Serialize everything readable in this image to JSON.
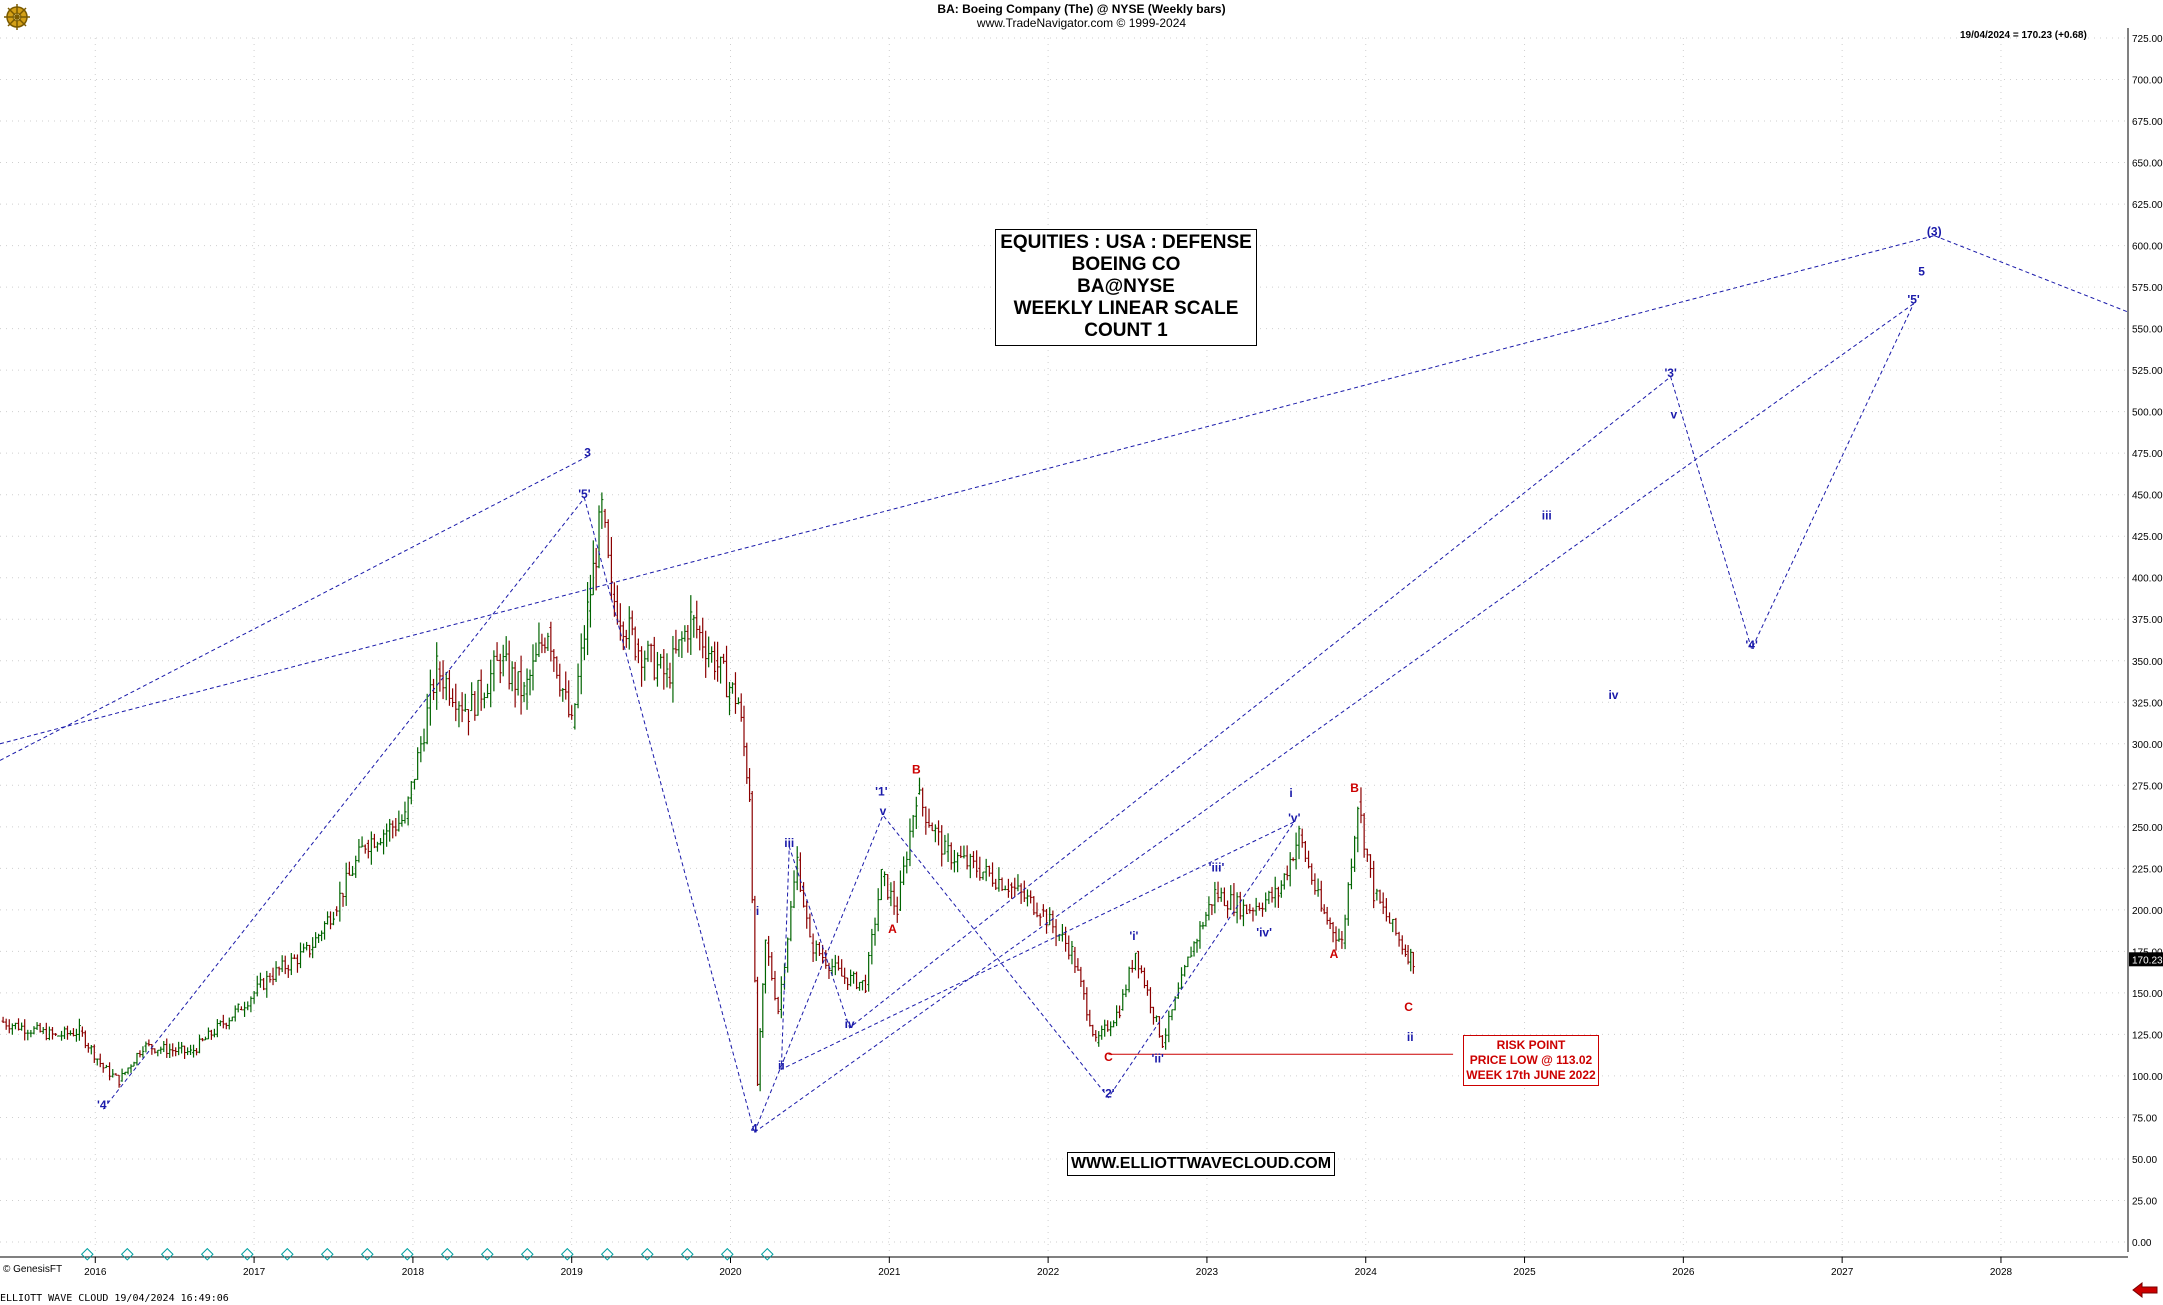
{
  "header": {
    "title": "BA:  Boeing Company (The) @ NYSE  (Weekly bars)",
    "copyright": "www.TradeNavigator.com © 1999-2024"
  },
  "last_quote": "19/04/2024 = 170.23 (+0.68)",
  "label_box": [
    "EQUITIES : USA : DEFENSE",
    "BOEING CO",
    "BA@NYSE",
    "WEEKLY LINEAR SCALE",
    "COUNT 1"
  ],
  "risk_box": [
    "RISK POINT",
    "PRICE LOW @ 113.02",
    "WEEK 17th JUNE 2022"
  ],
  "website": "WWW.ELLIOTTWAVECLOUD.COM",
  "credit": "© GenesisFT",
  "footer": "ELLIOTT WAVE CLOUD   19/04/2024 16:49:06",
  "icon": "ship-wheel-logo-icon",
  "colors": {
    "bull_bar": "#006400",
    "bear_bar": "#8b0000",
    "wave_blue": "#1a1aaa",
    "wave_red": "#cc0000",
    "grid": "#cfcfcf"
  },
  "chart_data": {
    "type": "ohlc-weekly",
    "ylim": [
      0,
      725
    ],
    "y_ticks": [
      0,
      25,
      50,
      75,
      100,
      125,
      150,
      175,
      200,
      225,
      250,
      275,
      300,
      325,
      350,
      375,
      400,
      425,
      450,
      475,
      500,
      525,
      550,
      575,
      600,
      625,
      650,
      675,
      700,
      725
    ],
    "x_range": [
      2015.4,
      2028.8
    ],
    "x_ticks": [
      "2016",
      "2017",
      "2018",
      "2019",
      "2020",
      "2021",
      "2022",
      "2023",
      "2024",
      "2025",
      "2026",
      "2027",
      "2028"
    ],
    "last_price": "170.23",
    "price_path": [
      [
        2015.4,
        133
      ],
      [
        2015.75,
        124
      ],
      [
        2015.9,
        127
      ],
      [
        2016.05,
        105
      ],
      [
        2016.15,
        97
      ],
      [
        2016.3,
        118
      ],
      [
        2016.6,
        114
      ],
      [
        2016.9,
        140
      ],
      [
        2017.1,
        160
      ],
      [
        2017.35,
        176
      ],
      [
        2017.5,
        200
      ],
      [
        2017.7,
        240
      ],
      [
        2017.95,
        255
      ],
      [
        2018.05,
        300
      ],
      [
        2018.15,
        345
      ],
      [
        2018.35,
        320
      ],
      [
        2018.55,
        350
      ],
      [
        2018.7,
        330
      ],
      [
        2018.85,
        370
      ],
      [
        2019.0,
        310
      ],
      [
        2019.1,
        380
      ],
      [
        2019.19,
        440
      ],
      [
        2019.25,
        390
      ],
      [
        2019.4,
        360
      ],
      [
        2019.6,
        340
      ],
      [
        2019.75,
        375
      ],
      [
        2019.9,
        350
      ],
      [
        2020.05,
        325
      ],
      [
        2020.12,
        270
      ],
      [
        2020.17,
        95
      ],
      [
        2020.22,
        180
      ],
      [
        2020.3,
        140
      ],
      [
        2020.42,
        230
      ],
      [
        2020.5,
        180
      ],
      [
        2020.7,
        160
      ],
      [
        2020.85,
        155
      ],
      [
        2020.95,
        220
      ],
      [
        2021.05,
        200
      ],
      [
        2021.17,
        270
      ],
      [
        2021.35,
        235
      ],
      [
        2021.55,
        225
      ],
      [
        2021.75,
        215
      ],
      [
        2021.95,
        200
      ],
      [
        2022.15,
        175
      ],
      [
        2022.3,
        120
      ],
      [
        2022.45,
        140
      ],
      [
        2022.55,
        175
      ],
      [
        2022.72,
        120
      ],
      [
        2022.9,
        175
      ],
      [
        2023.05,
        210
      ],
      [
        2023.25,
        200
      ],
      [
        2023.45,
        210
      ],
      [
        2023.58,
        245
      ],
      [
        2023.72,
        200
      ],
      [
        2023.85,
        180
      ],
      [
        2023.95,
        265
      ],
      [
        2024.05,
        210
      ],
      [
        2024.25,
        175
      ],
      [
        2024.3,
        170
      ]
    ],
    "blue_waves": [
      {
        "label": "'4'",
        "x": 2016.05,
        "y": 80
      },
      {
        "label": "3",
        "x": 2019.1,
        "y": 473
      },
      {
        "label": "'5'",
        "x": 2019.08,
        "y": 448
      },
      {
        "label": "i",
        "x": 2020.17,
        "y": 197
      },
      {
        "label": "4",
        "x": 2020.15,
        "y": 66
      },
      {
        "label": "iii",
        "x": 2020.37,
        "y": 238
      },
      {
        "label": "ii",
        "x": 2020.32,
        "y": 104
      },
      {
        "label": "iv",
        "x": 2020.75,
        "y": 129
      },
      {
        "label": "'1'",
        "x": 2020.95,
        "y": 269
      },
      {
        "label": "v",
        "x": 2020.96,
        "y": 257
      },
      {
        "label": "'i'",
        "x": 2022.54,
        "y": 182
      },
      {
        "label": "'ii'",
        "x": 2022.69,
        "y": 108
      },
      {
        "label": "'2'",
        "x": 2022.38,
        "y": 87
      },
      {
        "label": "'iii'",
        "x": 2023.06,
        "y": 223
      },
      {
        "label": "'iv'",
        "x": 2023.36,
        "y": 184
      },
      {
        "label": "'v'",
        "x": 2023.55,
        "y": 253
      },
      {
        "label": "i",
        "x": 2023.53,
        "y": 268
      },
      {
        "label": "ii",
        "x": 2024.28,
        "y": 121
      },
      {
        "label": "iii",
        "x": 2025.14,
        "y": 435
      },
      {
        "label": "iv",
        "x": 2025.56,
        "y": 327
      },
      {
        "label": "'3'",
        "x": 2025.92,
        "y": 521
      },
      {
        "label": "v",
        "x": 2025.94,
        "y": 496
      },
      {
        "label": "'4'",
        "x": 2026.43,
        "y": 357
      },
      {
        "label": "'5'",
        "x": 2027.45,
        "y": 565
      },
      {
        "label": "5",
        "x": 2027.5,
        "y": 582
      },
      {
        "label": "(3)",
        "x": 2027.58,
        "y": 606
      }
    ],
    "red_waves": [
      {
        "label": "A",
        "x": 2021.02,
        "y": 186
      },
      {
        "label": "B",
        "x": 2021.17,
        "y": 282
      },
      {
        "label": "C",
        "x": 2022.38,
        "y": 109
      },
      {
        "label": "A",
        "x": 2023.8,
        "y": 171
      },
      {
        "label": "B",
        "x": 2023.93,
        "y": 271
      },
      {
        "label": "C",
        "x": 2024.27,
        "y": 139
      }
    ],
    "risk_level": 113.02
  }
}
